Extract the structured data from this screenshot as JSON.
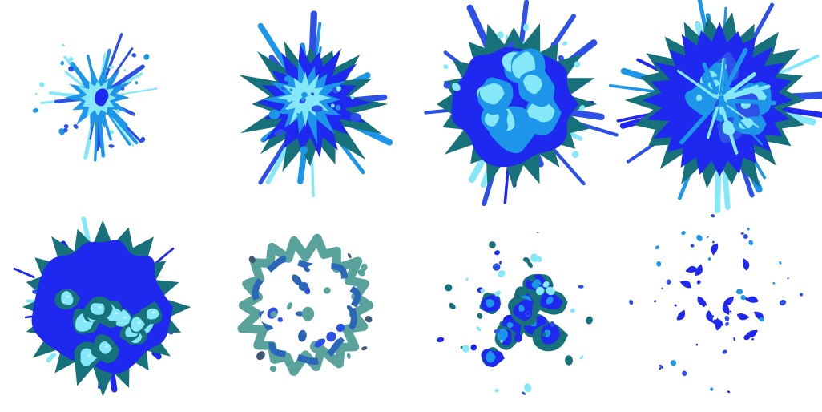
{
  "sprite_sheet": {
    "background": "#ffffff",
    "palette": {
      "outer_teal": "#16717b",
      "deep_blue": "#1f28ef",
      "royal_blue": "#2d51e8",
      "mid_blue": "#1d96e9",
      "light_cyan": "#84e8f8",
      "pale_cyan": "#b8f3fb",
      "steel_blue": "#2a67b8",
      "sage_teal": "#5aa39c"
    },
    "frames": [
      {
        "stage": "spark",
        "icon": "small-blue-spark-icon"
      },
      {
        "stage": "burst",
        "icon": "splashing-burst-icon"
      },
      {
        "stage": "bloom",
        "icon": "blooming-burst-icon"
      },
      {
        "stage": "peak",
        "icon": "full-burst-icon"
      },
      {
        "stage": "bubbling",
        "icon": "bubbling-burst-icon"
      },
      {
        "stage": "ring",
        "icon": "dissipating-ring-icon"
      },
      {
        "stage": "scatter",
        "icon": "scattering-droplets-icon"
      },
      {
        "stage": "fade",
        "icon": "fading-droplets-icon"
      }
    ]
  }
}
